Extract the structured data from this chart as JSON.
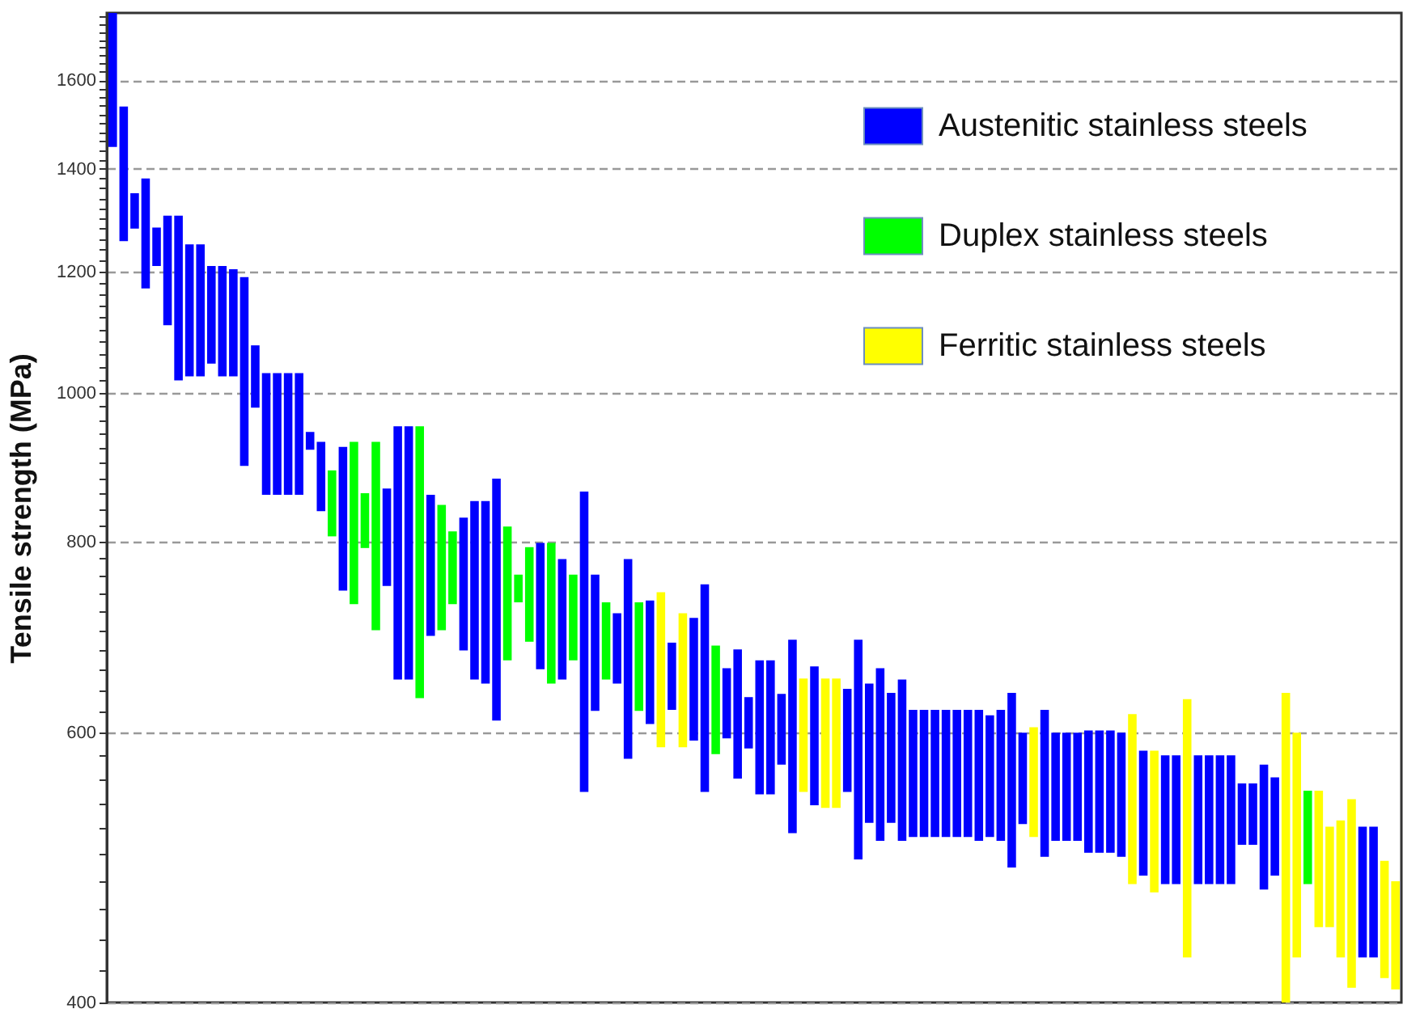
{
  "chart_data": {
    "type": "bar",
    "ylabel": "Tensile strength (MPa)",
    "log": true,
    "grid": "y",
    "legend": "top right",
    "tick_labels": "y",
    "ylim": [
      400,
      1770
    ],
    "yticks": [
      400,
      {
        "value": 420,
        "label": null
      },
      {
        "value": 440,
        "label": null
      },
      {
        "value": 460,
        "label": null
      },
      {
        "value": 480,
        "label": null
      },
      {
        "value": 500,
        "label": null
      },
      {
        "value": 520,
        "label": null
      },
      {
        "value": 540,
        "label": null
      },
      {
        "value": 560,
        "label": null
      },
      {
        "value": 580,
        "label": null
      },
      600,
      {
        "value": 620,
        "label": null
      },
      {
        "value": 640,
        "label": null
      },
      {
        "value": 660,
        "label": null
      },
      {
        "value": 680,
        "label": null
      },
      {
        "value": 700,
        "label": null
      },
      {
        "value": 720,
        "label": null
      },
      {
        "value": 740,
        "label": null
      },
      {
        "value": 760,
        "label": null
      },
      {
        "value": 780,
        "label": null
      },
      800,
      {
        "value": 820,
        "label": null
      },
      {
        "value": 840,
        "label": null
      },
      {
        "value": 860,
        "label": null
      },
      {
        "value": 880,
        "label": null
      },
      {
        "value": 900,
        "label": null
      },
      {
        "value": 920,
        "label": null
      },
      {
        "value": 940,
        "label": null
      },
      {
        "value": 960,
        "label": null
      },
      {
        "value": 980,
        "label": null
      },
      1000,
      {
        "value": 1020,
        "label": null
      },
      {
        "value": 1040,
        "label": null
      },
      {
        "value": 1060,
        "label": null
      },
      {
        "value": 1080,
        "label": null
      },
      {
        "value": 1100,
        "label": null
      },
      {
        "value": 1120,
        "label": null
      },
      {
        "value": 1140,
        "label": null
      },
      {
        "value": 1160,
        "label": null
      },
      {
        "value": 1180,
        "label": null
      },
      1200,
      {
        "value": 1220,
        "label": null
      },
      {
        "value": 1240,
        "label": null
      },
      {
        "value": 1260,
        "label": null
      },
      {
        "value": 1280,
        "label": null
      },
      {
        "value": 1300,
        "label": null
      },
      {
        "value": 1320,
        "label": null
      },
      {
        "value": 1340,
        "label": null
      },
      {
        "value": 1360,
        "label": null
      },
      {
        "value": 1380,
        "label": null
      },
      1400,
      {
        "value": 1420,
        "label": null
      },
      {
        "value": 1440,
        "label": null
      },
      {
        "value": 1460,
        "label": null
      },
      {
        "value": 1480,
        "label": null
      },
      {
        "value": 1500,
        "label": null
      },
      {
        "value": 1520,
        "label": null
      },
      {
        "value": 1540,
        "label": null
      },
      {
        "value": 1560,
        "label": null
      },
      {
        "value": 1580,
        "label": null
      },
      1600,
      {
        "value": 1620,
        "label": null
      },
      {
        "value": 1640,
        "label": null
      },
      {
        "value": 1660,
        "label": null
      },
      {
        "value": 1680,
        "label": null
      },
      {
        "value": 1700,
        "label": null
      },
      {
        "value": 1720,
        "label": null
      },
      {
        "value": 1740,
        "label": null
      },
      {
        "value": 1760,
        "label": null
      }
    ],
    "categories": [
      null,
      null,
      null,
      null,
      null,
      null,
      null,
      null,
      null,
      null,
      null,
      null,
      null,
      null,
      null,
      null,
      null,
      null,
      null,
      null,
      null,
      null,
      null,
      null,
      null,
      null,
      null,
      null,
      null,
      null,
      null,
      null,
      null,
      null,
      null,
      null,
      null,
      null,
      null,
      null,
      null,
      null,
      null,
      null,
      null,
      null,
      null,
      null,
      null,
      null,
      null,
      null,
      null,
      null,
      null,
      null,
      null,
      null,
      null,
      null,
      null,
      null,
      null,
      null,
      null,
      null,
      null,
      null,
      null,
      null,
      null,
      null,
      null,
      null,
      null,
      null,
      null,
      null,
      null,
      null,
      null,
      null,
      null,
      null,
      null,
      null,
      null,
      null,
      null,
      null,
      null,
      null,
      null,
      null,
      null,
      null,
      null,
      null,
      null,
      null,
      null,
      null,
      null,
      null,
      null,
      null,
      null,
      null,
      null,
      null,
      null,
      null,
      null,
      null,
      null,
      null,
      null,
      null
    ],
    "series": [
      {
        "name": "Austenitic stainless steels",
        "color": "#0000ff",
        "base": [
          1447,
          1256,
          1280,
          1170,
          1210,
          1107,
          1019,
          1025,
          1025,
          1045,
          1025,
          1025,
          896,
          978,
          858,
          858,
          858,
          858,
          918,
          837,
          null,
          743,
          null,
          null,
          null,
          748,
          650,
          650,
          null,
          694,
          null,
          null,
          679,
          650,
          646,
          611,
          null,
          null,
          null,
          660,
          null,
          650,
          null,
          549,
          620,
          null,
          646,
          577,
          null,
          608,
          null,
          621,
          null,
          593,
          549,
          null,
          595,
          560,
          586,
          547,
          547,
          572,
          516,
          null,
          538,
          null,
          null,
          549,
          496,
          524,
          510,
          524,
          510,
          513,
          513,
          513,
          513,
          513,
          513,
          510,
          513,
          510,
          490,
          523,
          null,
          498,
          510,
          510,
          510,
          501,
          501,
          501,
          498,
          null,
          484,
          null,
          478,
          478,
          null,
          478,
          478,
          478,
          478,
          507,
          507,
          474,
          484,
          null,
          null,
          null,
          null,
          null,
          null,
          null,
          428,
          428,
          null,
          null
        ],
        "values": [
          323,
          282,
          70,
          210,
          72,
          198,
          286,
          225,
          225,
          165,
          185,
          179,
          294,
          96,
          172,
          172,
          172,
          172,
          25,
          92,
          null,
          179,
          null,
          null,
          null,
          118,
          301,
          301,
          null,
          164,
          null,
          null,
          150,
          200,
          204,
          268,
          null,
          null,
          null,
          138,
          null,
          129,
          null,
          313,
          141,
          null,
          72,
          202,
          null,
          124,
          null,
          66,
          null,
          120,
          201,
          null,
          66,
          120,
          47,
          122,
          122,
          64,
          174,
          null,
          125,
          null,
          null,
          92,
          194,
          122,
          151,
          113,
          140,
          108,
          108,
          108,
          108,
          108,
          108,
          111,
          103,
          111,
          147,
          77,
          null,
          123,
          90,
          90,
          90,
          101,
          101,
          101,
          102,
          null,
          100,
          null,
          102,
          102,
          null,
          102,
          102,
          102,
          102,
          49,
          49,
          98,
          77,
          null,
          null,
          null,
          null,
          null,
          null,
          null,
          93,
          93,
          null,
          null
        ]
      },
      {
        "name": "Duplex stainless steels",
        "color": "#00ff00",
        "base": [
          null,
          null,
          null,
          null,
          null,
          null,
          null,
          null,
          null,
          null,
          null,
          null,
          null,
          null,
          null,
          null,
          null,
          null,
          null,
          null,
          806,
          null,
          728,
          792,
          700,
          null,
          null,
          null,
          632,
          null,
          700,
          728,
          null,
          null,
          null,
          null,
          669,
          730,
          688,
          null,
          646,
          null,
          669,
          null,
          null,
          650,
          null,
          null,
          620,
          null,
          null,
          null,
          null,
          null,
          null,
          581,
          null,
          null,
          null,
          null,
          null,
          null,
          null,
          null,
          null,
          null,
          null,
          null,
          null,
          null,
          null,
          null,
          null,
          null,
          null,
          null,
          null,
          null,
          null,
          null,
          null,
          null,
          null,
          null,
          null,
          null,
          null,
          null,
          null,
          null,
          null,
          null,
          null,
          null,
          null,
          null,
          null,
          null,
          null,
          null,
          null,
          null,
          null,
          null,
          null,
          null,
          null,
          null,
          null,
          478,
          null,
          null,
          null,
          null,
          null,
          null,
          null,
          null
        ],
        "values": [
          null,
          null,
          null,
          null,
          null,
          null,
          null,
          null,
          null,
          null,
          null,
          null,
          null,
          null,
          null,
          null,
          null,
          null,
          null,
          null,
          84,
          null,
          201,
          68,
          229,
          null,
          null,
          null,
          319,
          null,
          145,
          84,
          null,
          null,
          null,
          null,
          149,
          31,
          105,
          null,
          152,
          null,
          92,
          null,
          null,
          80,
          null,
          null,
          110,
          null,
          null,
          null,
          null,
          null,
          null,
          103,
          null,
          null,
          null,
          null,
          null,
          null,
          null,
          null,
          null,
          null,
          null,
          null,
          null,
          null,
          null,
          null,
          null,
          null,
          null,
          null,
          null,
          null,
          null,
          null,
          null,
          null,
          null,
          null,
          null,
          null,
          null,
          null,
          null,
          null,
          null,
          null,
          null,
          null,
          null,
          null,
          null,
          null,
          null,
          null,
          null,
          null,
          null,
          null,
          null,
          null,
          null,
          null,
          null,
          72,
          null,
          null,
          null,
          null,
          null,
          null,
          null,
          null
        ]
      },
      {
        "name": "Ferritic stainless steels",
        "color": "#ffff00",
        "base": [
          null,
          null,
          null,
          null,
          null,
          null,
          null,
          null,
          null,
          null,
          null,
          null,
          null,
          null,
          null,
          null,
          null,
          null,
          null,
          null,
          null,
          null,
          null,
          null,
          null,
          null,
          null,
          null,
          null,
          null,
          null,
          null,
          null,
          null,
          null,
          null,
          null,
          null,
          null,
          null,
          null,
          null,
          null,
          null,
          null,
          null,
          null,
          null,
          null,
          null,
          587,
          null,
          587,
          null,
          null,
          null,
          null,
          null,
          null,
          null,
          null,
          null,
          null,
          549,
          null,
          536,
          536,
          null,
          null,
          null,
          null,
          null,
          null,
          null,
          null,
          null,
          null,
          null,
          null,
          null,
          null,
          null,
          null,
          null,
          513,
          null,
          null,
          null,
          null,
          null,
          null,
          null,
          null,
          478,
          null,
          472,
          null,
          null,
          428,
          null,
          null,
          null,
          null,
          null,
          null,
          null,
          null,
          400,
          428,
          null,
          448,
          448,
          428,
          409,
          null,
          null,
          415,
          408
        ],
        "values": [
          null,
          null,
          null,
          null,
          null,
          null,
          null,
          null,
          null,
          null,
          null,
          null,
          null,
          null,
          null,
          null,
          null,
          null,
          null,
          null,
          null,
          null,
          null,
          null,
          null,
          null,
          null,
          null,
          null,
          null,
          null,
          null,
          null,
          null,
          null,
          null,
          null,
          null,
          null,
          null,
          null,
          null,
          null,
          null,
          null,
          null,
          null,
          null,
          null,
          null,
          154,
          null,
          131,
          null,
          null,
          null,
          null,
          null,
          null,
          null,
          null,
          null,
          null,
          102,
          null,
          115,
          115,
          null,
          null,
          null,
          null,
          null,
          null,
          null,
          null,
          null,
          null,
          null,
          null,
          null,
          null,
          null,
          null,
          null,
          92,
          null,
          null,
          null,
          null,
          null,
          null,
          null,
          null,
          139,
          null,
          112,
          null,
          null,
          203,
          null,
          null,
          null,
          null,
          null,
          null,
          null,
          null,
          237,
          172,
          null,
          102,
          73,
          98,
          134,
          null,
          null,
          80,
          72
        ]
      }
    ]
  }
}
